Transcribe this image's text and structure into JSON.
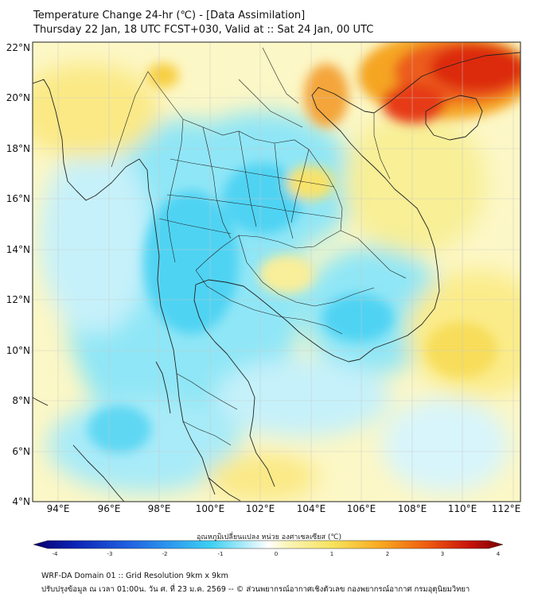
{
  "title": {
    "line1": "Temperature Change 24-hr (℃) - [Data Assimilation]",
    "line2": "Thursday 22 Jan, 18 UTC FCST+030, Valid at :: Sat 24 Jan, 00 UTC"
  },
  "map": {
    "lat_labels": [
      "22°N",
      "20°N",
      "18°N",
      "16°N",
      "14°N",
      "12°N",
      "10°N",
      "8°N",
      "6°N",
      "4°N"
    ],
    "lon_labels": [
      "94°E",
      "96°E",
      "98°E",
      "100°E",
      "102°E",
      "104°E",
      "106°E",
      "108°E",
      "110°E",
      "112°E"
    ]
  },
  "colorbar": {
    "label": "อุณหภูมิเปลี่ยนแปลง หน่วย องศาเซลเซียส (℃)",
    "ticks": [
      "-4",
      "-3",
      "-2",
      "-1",
      "0",
      "1",
      "2",
      "3",
      "4"
    ],
    "colors": [
      "#08006a",
      "#0a1fb0",
      "#1f5fe0",
      "#2e9ef0",
      "#3fd1f2",
      "#bff0fb",
      "#ffffff",
      "#fbf5b8",
      "#f7e25a",
      "#f8a81f",
      "#ef5a10",
      "#c6120a",
      "#7a0000"
    ]
  },
  "footer": {
    "line1": "WRF-DA Domain 01 :: Grid Resolution 9km x 9km",
    "line2": "ปรับปรุงข้อมูล ณ เวลา 01:00น. วัน ศ. ที่ 23 ม.ค. 2569 -- © ส่วนพยากรณ์อากาศเชิงตัวเลข กองพยากรณ์อากาศ กรมอุตุนิยมวิทยา"
  }
}
